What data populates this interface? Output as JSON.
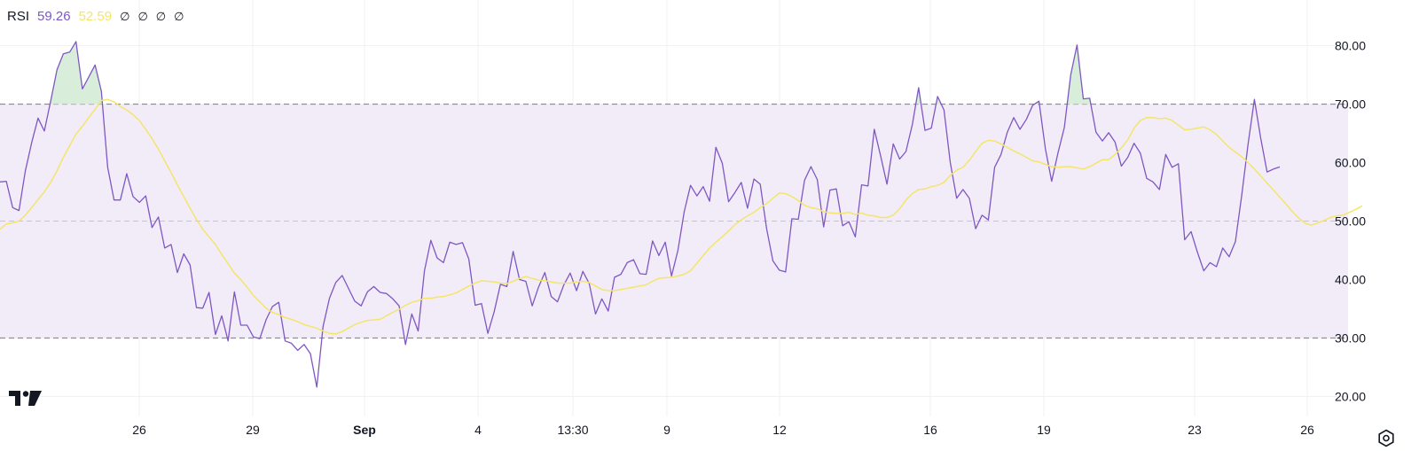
{
  "legend": {
    "name": "RSI",
    "rsi_value": "59.26",
    "ma_value": "52.59",
    "na_glyph": "∅"
  },
  "colors": {
    "rsi_line": "#7e57c2",
    "rsi_ma_line": "#f4e56a",
    "band_fill": "#f2ecf9",
    "overbought_fill": "#d8eedb",
    "bands": "#8e8e98"
  },
  "icons": [
    "tradingview-logo-icon",
    "settings-icon"
  ],
  "chart_data": {
    "type": "line",
    "ylim": [
      15,
      85
    ],
    "y_ticks": [
      "80.00",
      "70.00",
      "60.00",
      "50.00",
      "40.00",
      "30.00",
      "20.00"
    ],
    "x_ticks": [
      "26",
      "29",
      "Sep",
      "4",
      "13:30",
      "9",
      "12",
      "16",
      "19",
      "23",
      "26"
    ],
    "bands": {
      "upper": 70,
      "middle": 50,
      "lower": 30
    },
    "grid": true,
    "series": [
      {
        "name": "RSI",
        "values": [
          56.7,
          56.8,
          52.3,
          51.8,
          58.6,
          63.4,
          67.6,
          65.4,
          70.5,
          75.9,
          78.6,
          78.9,
          80.7,
          72.6,
          74.6,
          76.7,
          72.2,
          59.2,
          53.6,
          53.6,
          58.1,
          54.2,
          53.2,
          54.3,
          48.9,
          50.7,
          45.4,
          46.0,
          41.2,
          44.4,
          42.5,
          35.2,
          35.1,
          37.8,
          30.6,
          33.8,
          29.5,
          37.9,
          32.2,
          32.2,
          30.2,
          29.9,
          33.1,
          35.4,
          36.1,
          29.5,
          29.1,
          27.9,
          28.9,
          27.3,
          21.6,
          32.0,
          36.8,
          39.5,
          40.7,
          38.5,
          36.3,
          35.5,
          37.9,
          38.8,
          37.8,
          37.6,
          36.7,
          35.5,
          28.9,
          34.1,
          31.2,
          41.5,
          46.7,
          43.7,
          42.9,
          46.4,
          46.0,
          46.3,
          43.5,
          35.6,
          35.9,
          30.8,
          34.5,
          39.2,
          38.8,
          44.8,
          40.0,
          39.7,
          35.5,
          38.7,
          41.2,
          37.1,
          36.2,
          39.1,
          41.1,
          38.1,
          41.4,
          39.3,
          34.1,
          36.7,
          34.6,
          40.4,
          40.9,
          42.9,
          43.4,
          41.0,
          40.9,
          46.6,
          44.1,
          46.4,
          40.6,
          45.0,
          51.6,
          56.1,
          54.3,
          55.9,
          53.4,
          62.6,
          59.9,
          53.3,
          54.9,
          56.6,
          52.2,
          57.2,
          56.3,
          48.7,
          43.2,
          41.6,
          41.3,
          50.4,
          50.3,
          57.0,
          59.3,
          57.1,
          49.0,
          55.3,
          55.5,
          49.2,
          49.9,
          47.3,
          56.2,
          56.0,
          65.7,
          61.1,
          56.3,
          63.2,
          60.6,
          61.9,
          66.5,
          72.8,
          65.5,
          65.9,
          71.3,
          69.0,
          60.0,
          53.9,
          55.4,
          53.9,
          48.7,
          51.0,
          50.2,
          59.2,
          61.4,
          65.2,
          67.7,
          65.7,
          67.4,
          69.8,
          70.5,
          62.4,
          56.8,
          61.7,
          66.0,
          75.0,
          80.1,
          70.9,
          71.0,
          65.2,
          63.7,
          65.1,
          63.5,
          59.4,
          60.9,
          63.3,
          61.6,
          57.3,
          56.7,
          55.4,
          61.4,
          59.2,
          59.8,
          46.8,
          48.2,
          44.7,
          41.5,
          42.9,
          42.2,
          45.4,
          43.9,
          46.5,
          54.4,
          63.2,
          70.8,
          64.1,
          58.4,
          58.9,
          59.26
        ]
      },
      {
        "name": "RSI-based MA",
        "values": [
          48.6,
          49.5,
          49.7,
          50.0,
          51.0,
          52.3,
          53.7,
          55.0,
          56.6,
          58.6,
          60.9,
          62.9,
          64.9,
          66.2,
          67.7,
          69.1,
          70.6,
          70.8,
          70.4,
          69.6,
          69.0,
          68.2,
          67.2,
          65.7,
          64.1,
          62.3,
          60.3,
          58.3,
          56.2,
          54.2,
          52.2,
          50.3,
          48.6,
          47.3,
          46.0,
          44.3,
          42.7,
          41.1,
          40.0,
          38.7,
          37.3,
          36.2,
          35.1,
          34.4,
          34.0,
          33.5,
          33.2,
          32.8,
          32.3,
          32.0,
          31.7,
          31.2,
          30.8,
          30.7,
          31.1,
          31.7,
          32.3,
          32.7,
          33.0,
          33.1,
          33.2,
          33.8,
          34.4,
          34.9,
          35.6,
          36.1,
          36.4,
          36.8,
          36.8,
          37.0,
          37.1,
          37.4,
          37.7,
          38.3,
          38.9,
          39.4,
          39.8,
          39.7,
          39.6,
          39.4,
          39.3,
          39.7,
          40.2,
          40.5,
          40.2,
          39.9,
          39.8,
          39.6,
          39.4,
          39.4,
          39.4,
          39.6,
          39.7,
          39.5,
          38.9,
          38.3,
          38.1,
          38.1,
          38.3,
          38.5,
          38.7,
          38.9,
          39.1,
          39.7,
          40.2,
          40.3,
          40.4,
          40.6,
          40.9,
          41.5,
          42.8,
          44.1,
          45.4,
          46.4,
          47.3,
          48.3,
          49.4,
          50.2,
          50.9,
          51.5,
          52.3,
          53.0,
          53.9,
          54.8,
          54.7,
          54.2,
          53.5,
          52.7,
          52.3,
          52.1,
          51.6,
          51.4,
          51.3,
          51.3,
          51.5,
          51.1,
          51.4,
          51.0,
          50.9,
          50.6,
          50.6,
          51.0,
          52.1,
          53.6,
          54.7,
          55.4,
          55.5,
          55.9,
          56.1,
          56.6,
          57.8,
          58.7,
          59.2,
          60.4,
          61.9,
          63.3,
          63.8,
          63.7,
          63.2,
          62.6,
          62.0,
          61.5,
          60.9,
          60.3,
          60.1,
          59.7,
          59.3,
          59.2,
          59.3,
          59.3,
          59.1,
          58.9,
          59.3,
          59.9,
          60.5,
          60.5,
          61.4,
          62.5,
          63.9,
          65.9,
          67.2,
          67.7,
          67.7,
          67.5,
          67.6,
          67.2,
          66.4,
          65.6,
          65.7,
          65.9,
          66.1,
          65.6,
          64.8,
          63.7,
          62.6,
          61.8,
          61.0,
          60.0,
          58.9,
          57.7,
          56.5,
          55.3,
          54.1,
          52.9,
          51.6,
          50.5,
          49.6,
          49.3,
          49.7,
          50.1,
          50.6,
          50.9,
          51.0,
          51.5,
          52.0,
          52.59
        ]
      }
    ]
  }
}
